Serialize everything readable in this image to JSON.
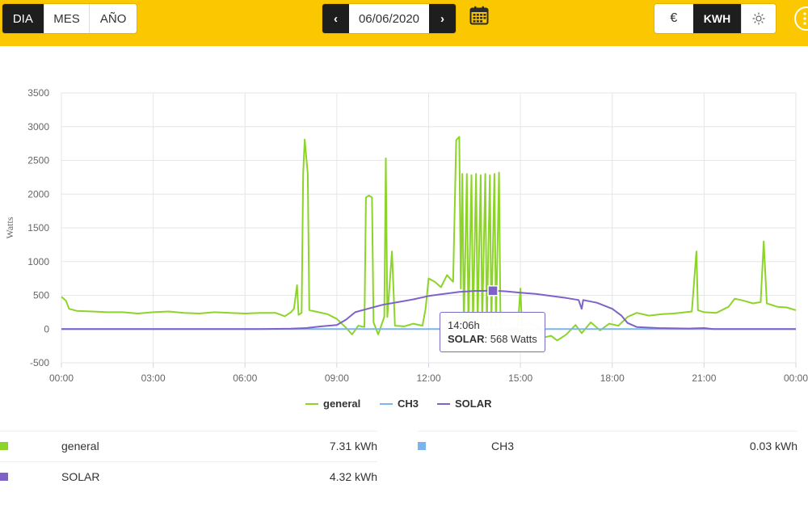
{
  "toolbar": {
    "period_day": "DIA",
    "period_month": "MES",
    "period_year": "AÑO",
    "date": "06/06/2020",
    "prev": "‹",
    "next": "›",
    "unit_currency": "€",
    "unit_kwh": "KWH"
  },
  "colors": {
    "general": "#8dd42a",
    "ch3": "#7cb5ec",
    "solar": "#7e62c9",
    "accent": "#fbc700"
  },
  "chart_data": {
    "type": "line",
    "ylabel": "Watts",
    "ylim": [
      -500,
      3500
    ],
    "y_ticks": [
      "3500",
      "3000",
      "2500",
      "2000",
      "1500",
      "1000",
      "500",
      "0",
      "-500"
    ],
    "x_ticks": [
      "00:00",
      "03:00",
      "06:00",
      "09:00",
      "12:00",
      "15:00",
      "18:00",
      "21:00",
      "00:00"
    ],
    "x_range_hours": [
      0,
      24
    ],
    "series": [
      {
        "name": "general",
        "points": [
          [
            0.0,
            480
          ],
          [
            0.15,
            420
          ],
          [
            0.25,
            300
          ],
          [
            0.5,
            270
          ],
          [
            1.0,
            260
          ],
          [
            1.5,
            250
          ],
          [
            2.0,
            250
          ],
          [
            2.5,
            230
          ],
          [
            3.0,
            250
          ],
          [
            3.5,
            260
          ],
          [
            4.0,
            240
          ],
          [
            4.5,
            230
          ],
          [
            5.0,
            250
          ],
          [
            5.5,
            240
          ],
          [
            6.0,
            230
          ],
          [
            6.5,
            240
          ],
          [
            7.0,
            240
          ],
          [
            7.3,
            190
          ],
          [
            7.5,
            250
          ],
          [
            7.6,
            300
          ],
          [
            7.7,
            650
          ],
          [
            7.75,
            210
          ],
          [
            7.85,
            240
          ],
          [
            7.9,
            2300
          ],
          [
            7.95,
            2810
          ],
          [
            8.05,
            2300
          ],
          [
            8.1,
            280
          ],
          [
            8.4,
            250
          ],
          [
            8.7,
            220
          ],
          [
            9.0,
            150
          ],
          [
            9.3,
            20
          ],
          [
            9.5,
            -80
          ],
          [
            9.7,
            50
          ],
          [
            9.9,
            30
          ],
          [
            9.95,
            1950
          ],
          [
            10.05,
            1980
          ],
          [
            10.15,
            1950
          ],
          [
            10.2,
            100
          ],
          [
            10.35,
            -80
          ],
          [
            10.55,
            180
          ],
          [
            10.6,
            2530
          ],
          [
            10.65,
            180
          ],
          [
            10.8,
            1150
          ],
          [
            10.9,
            50
          ],
          [
            11.2,
            40
          ],
          [
            11.5,
            80
          ],
          [
            11.8,
            50
          ],
          [
            11.9,
            300
          ],
          [
            12.0,
            750
          ],
          [
            12.2,
            700
          ],
          [
            12.4,
            620
          ],
          [
            12.6,
            800
          ],
          [
            12.8,
            700
          ],
          [
            12.9,
            2800
          ],
          [
            13.0,
            2850
          ],
          [
            13.05,
            600
          ],
          [
            13.1,
            2300
          ],
          [
            13.15,
            50
          ],
          [
            13.25,
            2300
          ],
          [
            13.3,
            50
          ],
          [
            13.4,
            2280
          ],
          [
            13.45,
            50
          ],
          [
            13.55,
            2300
          ],
          [
            13.6,
            50
          ],
          [
            13.7,
            2280
          ],
          [
            13.75,
            50
          ],
          [
            13.85,
            2300
          ],
          [
            13.9,
            50
          ],
          [
            14.0,
            2280
          ],
          [
            14.05,
            50
          ],
          [
            14.15,
            2300
          ],
          [
            14.2,
            50
          ],
          [
            14.3,
            2320
          ],
          [
            14.35,
            0
          ],
          [
            14.5,
            -50
          ],
          [
            14.7,
            20
          ],
          [
            14.9,
            -60
          ],
          [
            15.0,
            600
          ],
          [
            15.05,
            50
          ],
          [
            15.3,
            100
          ],
          [
            15.6,
            20
          ],
          [
            15.8,
            -120
          ],
          [
            16.0,
            -100
          ],
          [
            16.2,
            -170
          ],
          [
            16.5,
            -80
          ],
          [
            16.8,
            60
          ],
          [
            17.0,
            -60
          ],
          [
            17.3,
            100
          ],
          [
            17.6,
            -20
          ],
          [
            17.9,
            80
          ],
          [
            18.2,
            50
          ],
          [
            18.5,
            180
          ],
          [
            18.8,
            240
          ],
          [
            19.2,
            200
          ],
          [
            19.6,
            220
          ],
          [
            20.0,
            230
          ],
          [
            20.4,
            250
          ],
          [
            20.6,
            260
          ],
          [
            20.75,
            1150
          ],
          [
            20.8,
            280
          ],
          [
            21.0,
            250
          ],
          [
            21.4,
            240
          ],
          [
            21.8,
            330
          ],
          [
            22.0,
            450
          ],
          [
            22.3,
            420
          ],
          [
            22.6,
            380
          ],
          [
            22.85,
            400
          ],
          [
            22.95,
            1300
          ],
          [
            23.05,
            380
          ],
          [
            23.4,
            330
          ],
          [
            23.7,
            320
          ],
          [
            24.0,
            280
          ]
        ]
      },
      {
        "name": "CH3",
        "points": [
          [
            0.0,
            0
          ],
          [
            24.0,
            0
          ]
        ]
      },
      {
        "name": "SOLAR",
        "points": [
          [
            0.0,
            0
          ],
          [
            6.5,
            0
          ],
          [
            7.5,
            5
          ],
          [
            8.0,
            15
          ],
          [
            8.5,
            40
          ],
          [
            9.0,
            60
          ],
          [
            9.3,
            140
          ],
          [
            9.6,
            250
          ],
          [
            10.0,
            300
          ],
          [
            10.5,
            360
          ],
          [
            11.0,
            400
          ],
          [
            11.5,
            440
          ],
          [
            12.0,
            490
          ],
          [
            12.5,
            520
          ],
          [
            13.0,
            550
          ],
          [
            13.5,
            565
          ],
          [
            14.1,
            568
          ],
          [
            14.5,
            560
          ],
          [
            15.0,
            540
          ],
          [
            15.5,
            520
          ],
          [
            16.0,
            490
          ],
          [
            16.5,
            460
          ],
          [
            16.9,
            430
          ],
          [
            17.0,
            300
          ],
          [
            17.05,
            430
          ],
          [
            17.5,
            390
          ],
          [
            18.0,
            300
          ],
          [
            18.3,
            200
          ],
          [
            18.5,
            90
          ],
          [
            18.8,
            30
          ],
          [
            19.5,
            15
          ],
          [
            20.5,
            8
          ],
          [
            21.0,
            15
          ],
          [
            21.3,
            0
          ],
          [
            24.0,
            0
          ]
        ]
      }
    ],
    "tooltip": {
      "time": "14:06h",
      "series": "SOLAR",
      "value": "568 Watts",
      "x": 14.1,
      "y": 568
    },
    "grid": true,
    "legend_position": "bottom-center"
  },
  "legend": {
    "general": "general",
    "ch3": "CH3",
    "solar": "SOLAR"
  },
  "totals": [
    {
      "name": "general",
      "value": "7.31 kWh"
    },
    {
      "name": "CH3",
      "value": "0.03 kWh"
    },
    {
      "name": "SOLAR",
      "value": "4.32 kWh"
    }
  ]
}
